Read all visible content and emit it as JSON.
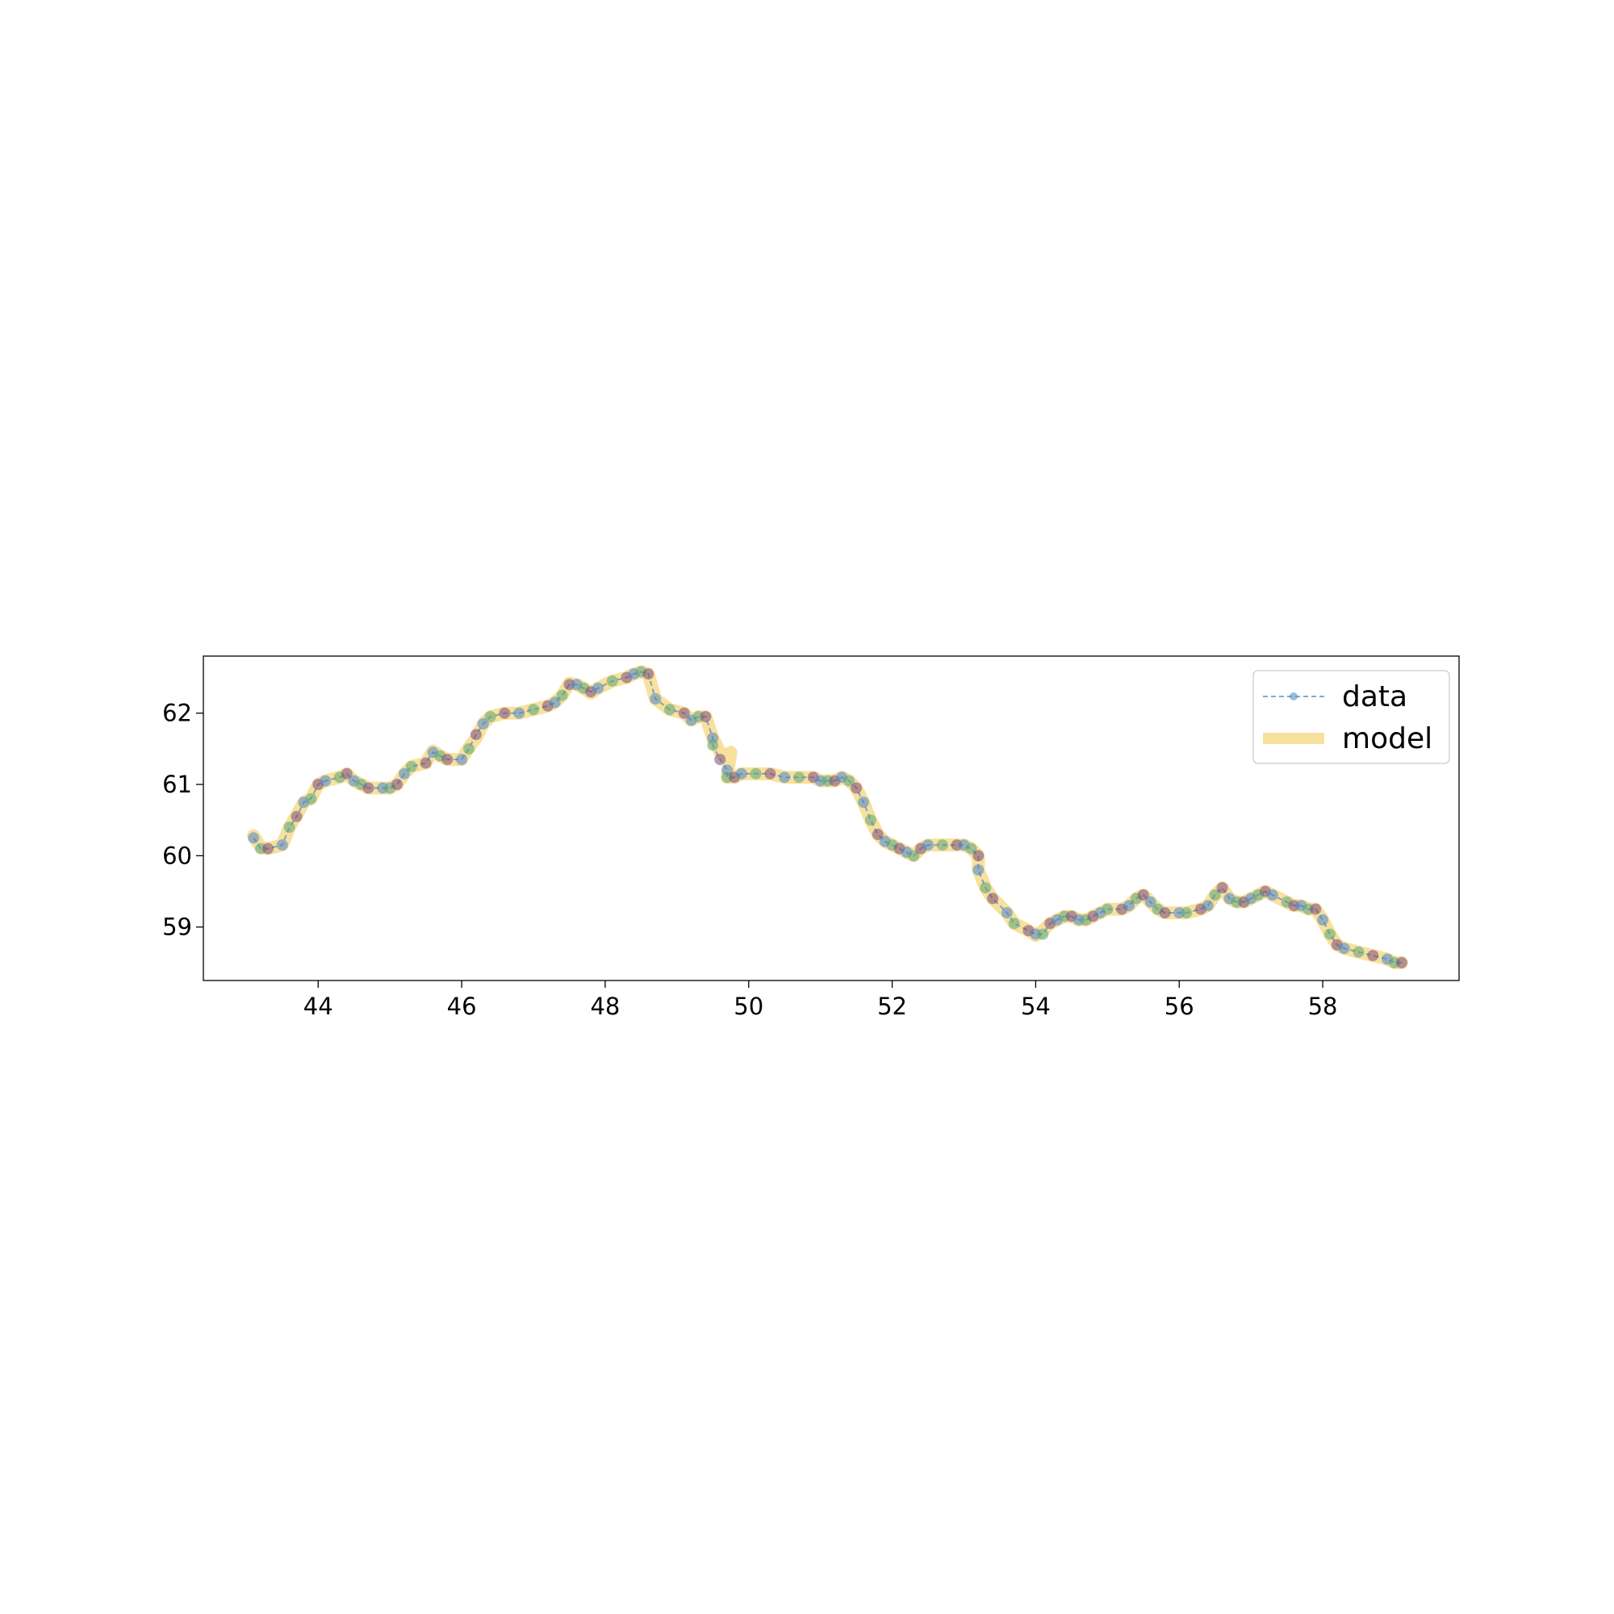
{
  "chart_data": {
    "type": "line",
    "title": "",
    "xlabel": "",
    "ylabel": "",
    "xlim": [
      42.4,
      59.9
    ],
    "ylim": [
      58.25,
      62.8
    ],
    "xticks": [
      44,
      46,
      48,
      50,
      52,
      54,
      56,
      58
    ],
    "yticks": [
      59,
      60,
      61,
      62
    ],
    "xtick_labels": [
      "44",
      "46",
      "48",
      "50",
      "52",
      "54",
      "56",
      "58"
    ],
    "ytick_labels": [
      "59",
      "60",
      "61",
      "62"
    ],
    "grid": false,
    "legend": {
      "placement": "top-right",
      "entries": [
        {
          "label": "data",
          "style": "dashed line with circle markers",
          "color": "#4a86c8"
        },
        {
          "label": "model",
          "style": "thick translucent line",
          "color": "#f2c94c"
        }
      ]
    },
    "series": [
      {
        "name": "data",
        "color": "#4a86c8",
        "point_colors": [
          "#4a86c8",
          "#5aa579",
          "#7a4a7a"
        ],
        "x": [
          43.1,
          43.2,
          43.3,
          43.5,
          43.6,
          43.7,
          43.8,
          43.9,
          44.0,
          44.1,
          44.3,
          44.4,
          44.5,
          44.6,
          44.7,
          44.9,
          45.0,
          45.1,
          45.2,
          45.3,
          45.5,
          45.6,
          45.7,
          45.8,
          46.0,
          46.1,
          46.2,
          46.3,
          46.4,
          46.6,
          46.8,
          47.0,
          47.2,
          47.3,
          47.4,
          47.5,
          47.6,
          47.7,
          47.8,
          47.9,
          48.1,
          48.3,
          48.4,
          48.5,
          48.6,
          48.7,
          48.9,
          49.1,
          49.2,
          49.3,
          49.4,
          49.5,
          49.5,
          49.6,
          49.7,
          49.7,
          49.8,
          49.9,
          50.1,
          50.3,
          50.5,
          50.7,
          50.9,
          51.0,
          51.1,
          51.2,
          51.3,
          51.4,
          51.5,
          51.6,
          51.7,
          51.8,
          51.9,
          52.0,
          52.1,
          52.2,
          52.3,
          52.4,
          52.5,
          52.7,
          52.9,
          53.0,
          53.1,
          53.2,
          53.2,
          53.3,
          53.4,
          53.6,
          53.7,
          53.9,
          54.0,
          54.1,
          54.2,
          54.3,
          54.4,
          54.5,
          54.6,
          54.7,
          54.8,
          54.9,
          55.0,
          55.2,
          55.3,
          55.4,
          55.5,
          55.6,
          55.7,
          55.8,
          56.0,
          56.1,
          56.3,
          56.4,
          56.5,
          56.6,
          56.7,
          56.8,
          56.9,
          57.0,
          57.1,
          57.2,
          57.3,
          57.5,
          57.6,
          57.7,
          57.8,
          57.9,
          58.0,
          58.1,
          58.2,
          58.3,
          58.5,
          58.7,
          58.9,
          59.0,
          59.1
        ],
        "y": [
          60.25,
          60.1,
          60.1,
          60.15,
          60.4,
          60.55,
          60.75,
          60.8,
          61.0,
          61.05,
          61.1,
          61.15,
          61.05,
          61.0,
          60.95,
          60.95,
          60.95,
          61.0,
          61.15,
          61.25,
          61.3,
          61.45,
          61.4,
          61.35,
          61.35,
          61.5,
          61.7,
          61.85,
          61.95,
          62.0,
          62.0,
          62.05,
          62.1,
          62.15,
          62.25,
          62.4,
          62.4,
          62.35,
          62.3,
          62.35,
          62.45,
          62.5,
          62.55,
          62.58,
          62.55,
          62.2,
          62.05,
          62.0,
          61.9,
          61.95,
          61.95,
          61.65,
          61.55,
          61.35,
          61.2,
          61.1,
          61.1,
          61.15,
          61.15,
          61.15,
          61.1,
          61.1,
          61.1,
          61.05,
          61.05,
          61.05,
          61.1,
          61.05,
          60.95,
          60.75,
          60.5,
          60.3,
          60.2,
          60.15,
          60.1,
          60.05,
          60.0,
          60.1,
          60.15,
          60.15,
          60.15,
          60.15,
          60.1,
          60.0,
          59.8,
          59.55,
          59.4,
          59.2,
          59.05,
          58.95,
          58.9,
          58.9,
          59.05,
          59.1,
          59.15,
          59.15,
          59.1,
          59.1,
          59.15,
          59.2,
          59.25,
          59.25,
          59.3,
          59.4,
          59.45,
          59.35,
          59.25,
          59.2,
          59.2,
          59.2,
          59.25,
          59.3,
          59.45,
          59.55,
          59.4,
          59.35,
          59.35,
          59.4,
          59.45,
          59.5,
          59.45,
          59.35,
          59.3,
          59.3,
          59.25,
          59.25,
          59.1,
          58.9,
          58.75,
          58.7,
          58.65,
          58.6,
          58.55,
          58.5,
          58.5
        ]
      },
      {
        "name": "model",
        "color": "#f2c94c",
        "x": [
          43.1,
          43.2,
          43.3,
          43.5,
          43.6,
          43.7,
          43.8,
          43.9,
          44.0,
          44.1,
          44.3,
          44.4,
          44.5,
          44.6,
          44.7,
          44.9,
          45.0,
          45.1,
          45.2,
          45.3,
          45.5,
          45.6,
          45.7,
          45.8,
          46.0,
          46.1,
          46.2,
          46.3,
          46.4,
          46.6,
          46.8,
          47.0,
          47.2,
          47.3,
          47.4,
          47.5,
          47.6,
          47.7,
          47.8,
          47.9,
          48.1,
          48.3,
          48.4,
          48.5,
          48.6,
          48.7,
          48.9,
          49.1,
          49.2,
          49.3,
          49.4,
          49.5,
          49.6,
          49.7,
          49.75,
          49.7,
          49.8,
          49.9,
          50.1,
          50.3,
          50.5,
          50.7,
          50.9,
          51.0,
          51.1,
          51.2,
          51.3,
          51.4,
          51.5,
          51.6,
          51.7,
          51.8,
          51.9,
          52.0,
          52.1,
          52.2,
          52.3,
          52.4,
          52.5,
          52.7,
          52.9,
          53.0,
          53.1,
          53.2,
          53.2,
          53.3,
          53.4,
          53.6,
          53.7,
          53.9,
          54.0,
          54.1,
          54.2,
          54.3,
          54.4,
          54.5,
          54.6,
          54.7,
          54.8,
          54.9,
          55.0,
          55.2,
          55.3,
          55.4,
          55.5,
          55.6,
          55.7,
          55.8,
          56.0,
          56.1,
          56.3,
          56.4,
          56.5,
          56.6,
          56.7,
          56.8,
          56.9,
          57.0,
          57.1,
          57.2,
          57.3,
          57.5,
          57.6,
          57.7,
          57.8,
          57.9,
          58.0,
          58.1,
          58.2,
          58.3,
          58.5,
          58.7,
          58.9,
          59.0,
          59.1
        ],
        "y": [
          60.28,
          60.12,
          60.1,
          60.15,
          60.4,
          60.57,
          60.75,
          60.8,
          61.0,
          61.05,
          61.1,
          61.15,
          61.05,
          61.0,
          60.95,
          60.95,
          60.95,
          61.0,
          61.15,
          61.25,
          61.3,
          61.47,
          61.4,
          61.35,
          61.35,
          61.52,
          61.65,
          61.85,
          61.95,
          62.0,
          62.0,
          62.05,
          62.1,
          62.15,
          62.25,
          62.42,
          62.4,
          62.35,
          62.28,
          62.35,
          62.45,
          62.5,
          62.55,
          62.58,
          62.55,
          62.2,
          62.05,
          62.0,
          61.9,
          61.95,
          61.95,
          61.65,
          61.45,
          61.4,
          61.45,
          61.1,
          61.1,
          61.15,
          61.15,
          61.15,
          61.1,
          61.1,
          61.1,
          61.05,
          61.05,
          61.05,
          61.1,
          61.05,
          60.95,
          60.75,
          60.5,
          60.3,
          60.2,
          60.15,
          60.1,
          60.05,
          60.0,
          60.1,
          60.15,
          60.15,
          60.15,
          60.15,
          60.1,
          60.0,
          59.8,
          59.55,
          59.4,
          59.2,
          59.05,
          58.95,
          58.88,
          58.95,
          59.05,
          59.1,
          59.15,
          59.15,
          59.1,
          59.1,
          59.15,
          59.2,
          59.25,
          59.25,
          59.3,
          59.4,
          59.45,
          59.35,
          59.25,
          59.2,
          59.2,
          59.2,
          59.25,
          59.3,
          59.45,
          59.55,
          59.4,
          59.35,
          59.35,
          59.4,
          59.45,
          59.5,
          59.45,
          59.35,
          59.3,
          59.3,
          59.25,
          59.25,
          59.1,
          58.9,
          58.75,
          58.7,
          58.65,
          58.6,
          58.55,
          58.5,
          58.5
        ]
      }
    ]
  }
}
